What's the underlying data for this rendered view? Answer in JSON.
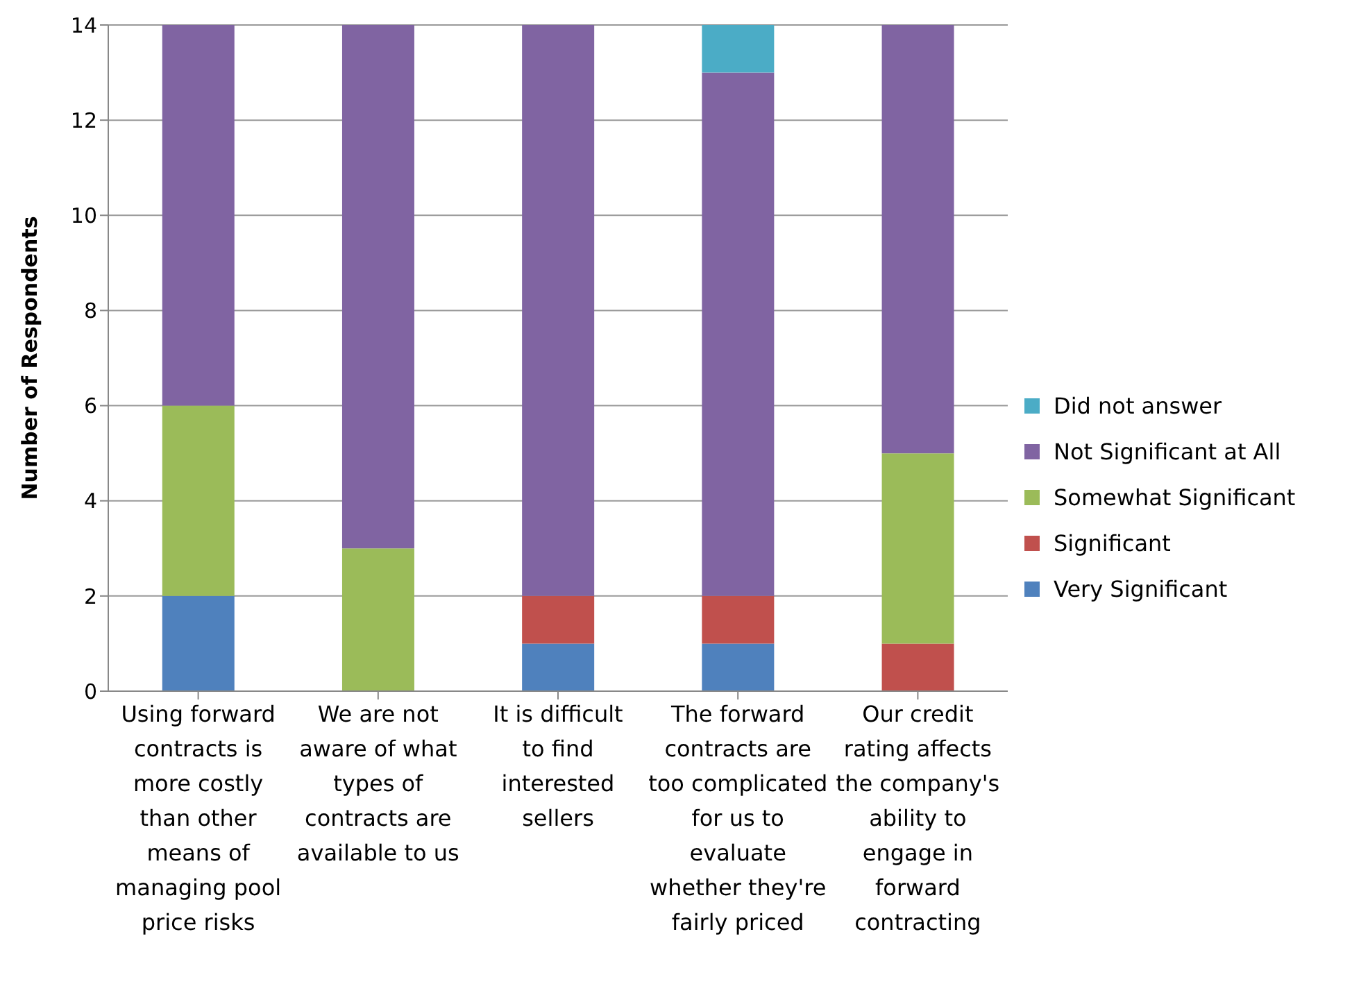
{
  "chart_data": {
    "type": "bar",
    "stacked": true,
    "ylabel": "Number of Respondents",
    "categories": [
      "Using forward contracts is more costly than other means of managing pool price risks",
      "We are not aware of what types of contracts are available to us",
      "It is difficult to find interested sellers",
      "The forward contracts are too complicated for us to evaluate whether they're fairly priced",
      "Our credit rating affects the company's ability to engage in forward contracting"
    ],
    "series": [
      {
        "name": "Very Significant",
        "color": "#4f81bd",
        "values": [
          2,
          0,
          1,
          1,
          0
        ]
      },
      {
        "name": "Significant",
        "color": "#c0504d",
        "values": [
          0,
          0,
          1,
          1,
          1
        ]
      },
      {
        "name": "Somewhat Significant",
        "color": "#9bbb59",
        "values": [
          4,
          3,
          0,
          0,
          4
        ]
      },
      {
        "name": "Not Significant at All",
        "color": "#8064a2",
        "values": [
          8,
          11,
          12,
          11,
          9
        ]
      },
      {
        "name": "Did not answer",
        "color": "#4bacc6",
        "values": [
          0,
          0,
          0,
          1,
          0
        ]
      }
    ],
    "ylim": [
      0,
      14
    ],
    "yticks": [
      0,
      2,
      4,
      6,
      8,
      10,
      12,
      14
    ],
    "grid": "y",
    "legend": "right"
  }
}
